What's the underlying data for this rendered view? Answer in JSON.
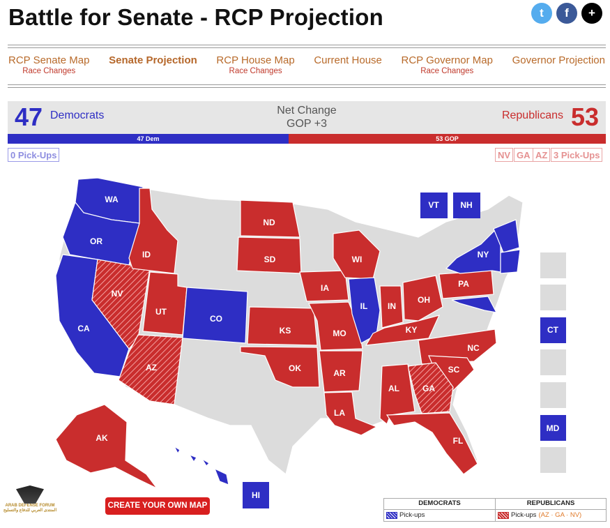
{
  "page": {
    "title": "Battle for Senate - RCP Projection"
  },
  "social": [
    {
      "name": "twitter",
      "glyph": "t"
    },
    {
      "name": "facebook",
      "glyph": "f"
    },
    {
      "name": "more",
      "glyph": "+"
    }
  ],
  "nav": [
    {
      "label": "RCP Senate Map",
      "sub": "Race Changes"
    },
    {
      "label": "Senate Projection",
      "sub": ""
    },
    {
      "label": "RCP House Map",
      "sub": "Race Changes"
    },
    {
      "label": "Current House",
      "sub": ""
    },
    {
      "label": "RCP Governor Map",
      "sub": "Race Changes"
    },
    {
      "label": "Governor Projection",
      "sub": ""
    }
  ],
  "tally": {
    "dem_count": "47",
    "dem_label": "Democrats",
    "rep_count": "53",
    "rep_label": "Republicans",
    "net_label": "Net Change",
    "net_value": "GOP +3",
    "bar_dem": "47 Dem",
    "bar_rep": "53 GOP",
    "dem_share": 0.47
  },
  "pickups": {
    "dem": "0 Pick-Ups",
    "rep_states": [
      "NV",
      "GA",
      "AZ"
    ],
    "rep": "3 Pick-Ups"
  },
  "colors": {
    "dem": "#2e2ec4",
    "rep": "#c92d2d",
    "none": "#dcdcdc"
  },
  "map": {
    "states": [
      {
        "abbr": "WA",
        "party": "dem"
      },
      {
        "abbr": "OR",
        "party": "dem"
      },
      {
        "abbr": "CA",
        "party": "dem"
      },
      {
        "abbr": "NV",
        "party": "rep-pickup"
      },
      {
        "abbr": "ID",
        "party": "rep"
      },
      {
        "abbr": "UT",
        "party": "rep"
      },
      {
        "abbr": "AZ",
        "party": "rep-pickup"
      },
      {
        "abbr": "CO",
        "party": "dem"
      },
      {
        "abbr": "ND",
        "party": "rep"
      },
      {
        "abbr": "SD",
        "party": "rep"
      },
      {
        "abbr": "KS",
        "party": "rep"
      },
      {
        "abbr": "OK",
        "party": "rep"
      },
      {
        "abbr": "AR",
        "party": "rep"
      },
      {
        "abbr": "LA",
        "party": "rep"
      },
      {
        "abbr": "MO",
        "party": "rep"
      },
      {
        "abbr": "IA",
        "party": "rep"
      },
      {
        "abbr": "WI",
        "party": "rep"
      },
      {
        "abbr": "IL",
        "party": "dem"
      },
      {
        "abbr": "IN",
        "party": "rep"
      },
      {
        "abbr": "OH",
        "party": "rep"
      },
      {
        "abbr": "KY",
        "party": "rep"
      },
      {
        "abbr": "PA",
        "party": "rep"
      },
      {
        "abbr": "NY",
        "party": "dem"
      },
      {
        "abbr": "NC",
        "party": "rep"
      },
      {
        "abbr": "SC",
        "party": "rep"
      },
      {
        "abbr": "GA",
        "party": "rep-pickup"
      },
      {
        "abbr": "AL",
        "party": "rep"
      },
      {
        "abbr": "FL",
        "party": "rep"
      },
      {
        "abbr": "AK",
        "party": "rep"
      },
      {
        "abbr": "HI",
        "party": "dem"
      },
      {
        "abbr": "MD",
        "party": "dem"
      }
    ],
    "boxes": [
      "VT",
      "NH",
      "CT",
      "MD",
      "HI"
    ]
  },
  "create_button": "CREATE YOUR OWN MAP",
  "legend": {
    "dem_header": "DEMOCRATS",
    "rep_header": "REPUBLICANS",
    "dem_item": "Pick-ups",
    "rep_item": "Pick-ups",
    "rep_states": "(AZ · GA · NV)"
  },
  "watermark": {
    "line1": "ARAB DEFENSE FORUM",
    "line2": "المنتدى العربي للدفاع والتسليح"
  }
}
